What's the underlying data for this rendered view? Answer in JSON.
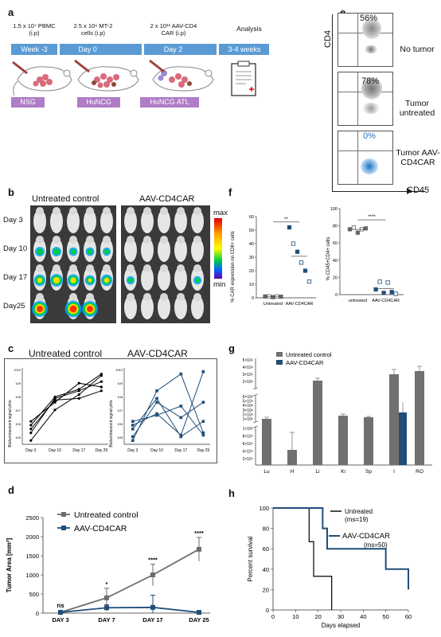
{
  "panels": {
    "a": "a",
    "b": "b",
    "c": "c",
    "d": "d",
    "e": "e",
    "f": "f",
    "g": "g",
    "h": "h"
  },
  "panel_a": {
    "top_labels": [
      "1.5 x 10⁷ PBMC (i.p)",
      "2.5 x 10⁶ MT-2 cells (i.p)",
      "2 x 10¹¹ AAV-CD4 CAR (i.p)",
      "Analysis"
    ],
    "timeline": [
      "Week -3",
      "Day 0",
      "Day 2",
      "3-4 weeks"
    ],
    "models": [
      "NSG",
      "HuNCG",
      "HuNCG ATL"
    ],
    "timeline_color": "#5b9bd5",
    "model_color": "#b07cc6"
  },
  "panel_b": {
    "group1": "Untreated control",
    "group2": "AAV-CD4CAR",
    "days": [
      "Day 3",
      "Day 10",
      "Day 17",
      "Day25"
    ],
    "scale_max": "max",
    "scale_min": "min"
  },
  "panel_c": {
    "title1": "Untreated control",
    "title2": "AAV-CD4CAR",
    "ylabel": "Bioluminescent signal ph/s",
    "xticks": [
      "Day 3",
      "Day 10",
      "Day 17",
      "Day 25"
    ]
  },
  "panel_e": {
    "ylabel": "CD4",
    "xlabel": "CD45",
    "rows": [
      {
        "pct": "56%",
        "label": "No tumor"
      },
      {
        "pct": "78%",
        "label": "Tumor untreated"
      },
      {
        "pct": "0%",
        "label": "Tumor AAV-CD4CAR"
      }
    ]
  },
  "panel_f": {
    "left": {
      "ylabel": "% CAR expression on CD8+ cells",
      "yticks": [
        "0",
        "10",
        "20",
        "30",
        "40",
        "50",
        "60"
      ],
      "xticks": [
        "Untreated",
        "AAV-CD4CAR"
      ],
      "sig": "**"
    },
    "right": {
      "ylabel": "% CD45+CD4+ cells",
      "yticks": [
        "0",
        "20",
        "40",
        "60",
        "80",
        "100"
      ],
      "xticks": [
        "untreated",
        "AAV-CD4CAR"
      ],
      "sig": "****"
    }
  },
  "panel_g": {
    "legend": [
      "Untreated control",
      "AAV-CD4CAR"
    ],
    "yticks_top": [
      "2×10⁹",
      "3×10⁹",
      "4×10⁹",
      "5×10⁹"
    ],
    "yticks_mid": [
      "1×10⁸",
      "2×10⁸",
      "3×10⁸",
      "4×10⁸",
      "5×10⁸",
      "6×10⁸"
    ],
    "yticks_low": [
      "2×10⁴",
      "4×10⁴",
      "6×10⁴",
      "8×10⁴",
      "1×10⁵"
    ],
    "categories": [
      "Lu",
      "H",
      "Li",
      "Ki",
      "Sp",
      "I",
      "RO"
    ]
  },
  "panel_h": {
    "ylabel": "Percent survival",
    "xlabel": "Days elapsed",
    "yticks": [
      "0",
      "20",
      "40",
      "60",
      "80",
      "100"
    ],
    "xticks": [
      "0",
      "10",
      "20",
      "30",
      "40",
      "50",
      "60"
    ],
    "legend": [
      {
        "name": "Untreated",
        "note": "(ms=19)"
      },
      {
        "name": "AAV-CD4CAR",
        "note": "(ms=50)"
      }
    ]
  },
  "chart_data": [
    {
      "type": "line",
      "panel": "d",
      "xlabel": "",
      "ylabel": "Tumor Area [mm²]",
      "categories": [
        "DAY 3",
        "DAY 7",
        "DAY 17",
        "DAY 25"
      ],
      "ylim": [
        0,
        2500
      ],
      "yticks": [
        "0",
        "500",
        "1000",
        "1500",
        "2000",
        "2500"
      ],
      "series": [
        {
          "name": "Untreated control",
          "values": [
            20,
            400,
            1000,
            1670
          ],
          "color": "#6d6d6d"
        },
        {
          "name": "AAV-CD4CAR",
          "values": [
            20,
            140,
            150,
            20
          ],
          "color": "#1f4e79"
        }
      ],
      "annotations": [
        "ns",
        "*",
        "****",
        "****"
      ]
    },
    {
      "type": "line",
      "panel": "h",
      "xlim": [
        0,
        60
      ],
      "ylim": [
        0,
        100
      ],
      "series": [
        {
          "name": "Untreated",
          "x": [
            0,
            16,
            16,
            18,
            18,
            20,
            20,
            26,
            26
          ],
          "values": [
            100,
            100,
            67,
            67,
            33,
            33,
            33,
            33,
            0
          ],
          "color": "#000000"
        },
        {
          "name": "AAV-CD4CAR",
          "x": [
            0,
            22,
            22,
            24,
            24,
            50,
            50,
            60,
            60
          ],
          "values": [
            100,
            100,
            80,
            80,
            60,
            60,
            40,
            40,
            20
          ],
          "color": "#1f4e79"
        }
      ]
    }
  ]
}
